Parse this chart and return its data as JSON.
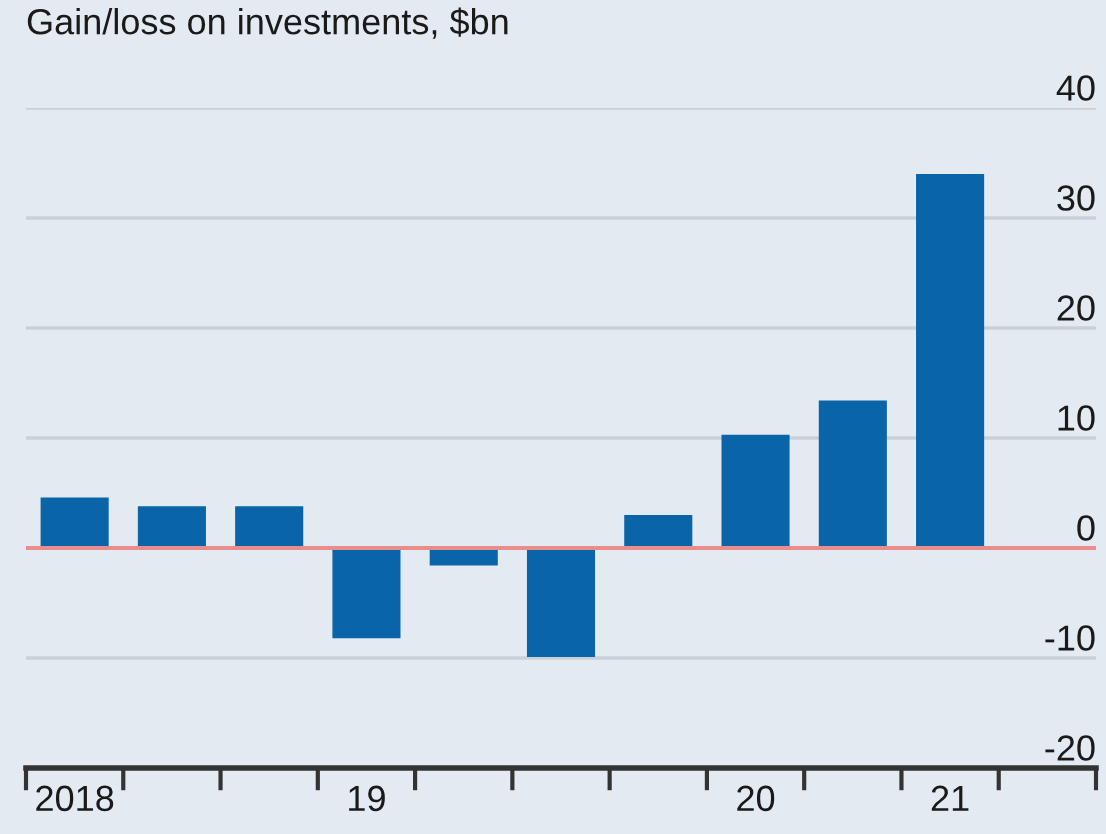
{
  "chart_data": {
    "type": "bar",
    "title": "Gain/loss on investments, $bn",
    "categories": [
      "2018",
      null,
      null,
      "19",
      null,
      null,
      null,
      "20",
      null,
      "21"
    ],
    "series": [
      {
        "color": "#0a64a8",
        "values": [
          4.6,
          3.8,
          3.8,
          -8.2,
          -1.6,
          -9.9,
          3.0,
          10.3,
          13.4,
          34
        ]
      }
    ],
    "ylim": [
      -20,
      40
    ],
    "yticks": [
      -20,
      -10,
      0,
      10,
      20,
      30,
      40
    ],
    "grid": "y",
    "ref_lines": [
      {
        "axis": "y",
        "value": 0,
        "label": null,
        "color": "#e88c8c"
      }
    ]
  }
}
